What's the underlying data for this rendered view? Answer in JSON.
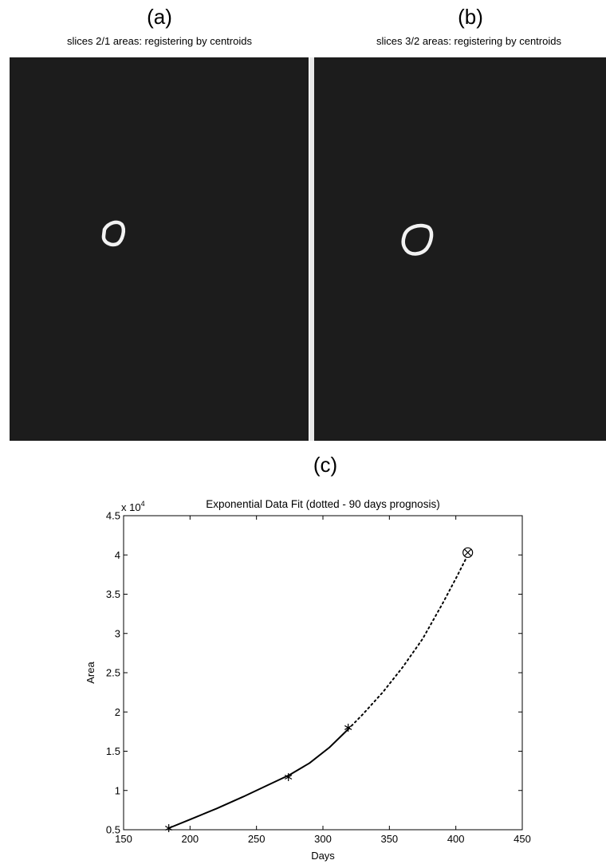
{
  "panels": {
    "a": {
      "label": "(a)",
      "title": "slices 2/1 areas: registering by centroids"
    },
    "b": {
      "label": "(b)",
      "title": "slices 3/2 areas: registering by centroids"
    },
    "c": {
      "label": "(c)"
    }
  },
  "colors": {
    "image_background": "#1c1c1c",
    "contour": "#f2f2f2",
    "divider": "#e8e8e8"
  },
  "chart_data": {
    "type": "line",
    "title": "Exponential Data Fit (dotted - 90 days prognosis)",
    "xlabel": "Days",
    "ylabel": "Area",
    "y_multiplier": "x 10",
    "y_multiplier_exponent": "4",
    "xlim": [
      150,
      450
    ],
    "ylim": [
      0.5,
      4.5
    ],
    "xticks": [
      150,
      200,
      250,
      300,
      350,
      400,
      450
    ],
    "yticks": [
      0.5,
      1,
      1.5,
      2,
      2.5,
      3,
      3.5,
      4,
      4.5
    ],
    "grid": false,
    "series": [
      {
        "style": "solid",
        "x": [
          184,
          200,
          220,
          240,
          260,
          275,
          290,
          305,
          319
        ],
        "y": [
          0.52,
          0.63,
          0.77,
          0.92,
          1.08,
          1.2,
          1.35,
          1.55,
          1.78
        ]
      },
      {
        "style": "dotted",
        "x": [
          319,
          330,
          345,
          360,
          375,
          390,
          400,
          409
        ],
        "y": [
          1.78,
          1.97,
          2.25,
          2.57,
          2.93,
          3.38,
          3.7,
          4.0
        ]
      }
    ],
    "markers": [
      {
        "shape": "asterisk",
        "x": 184,
        "y": 0.52
      },
      {
        "shape": "asterisk",
        "x": 274,
        "y": 1.17
      },
      {
        "shape": "asterisk",
        "x": 319,
        "y": 1.8
      },
      {
        "shape": "circle-x",
        "x": 409,
        "y": 4.03
      }
    ]
  }
}
